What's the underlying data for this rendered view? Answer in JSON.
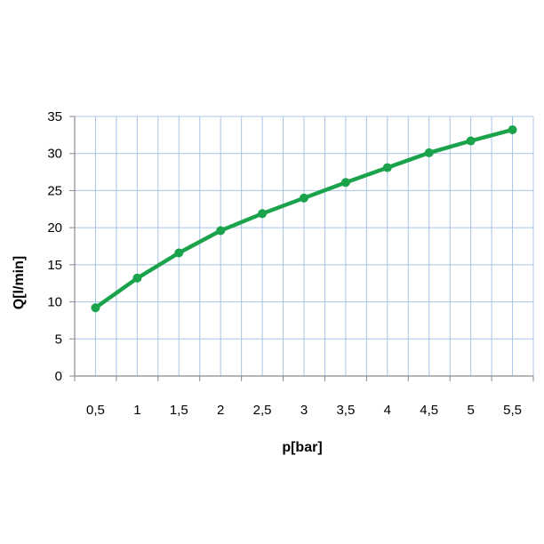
{
  "chart_data": {
    "type": "line",
    "title": "",
    "xlabel": "p[bar]",
    "ylabel": "Q[l/min]",
    "categories": [
      "0,5",
      "1",
      "1,5",
      "2",
      "2,5",
      "3",
      "3,5",
      "4",
      "4,5",
      "5",
      "5,5"
    ],
    "x": [
      0.5,
      1,
      1.5,
      2,
      2.5,
      3,
      3.5,
      4,
      4.5,
      5,
      5.5
    ],
    "series": [
      {
        "name": "",
        "values": [
          9.2,
          13.2,
          16.6,
          19.6,
          21.9,
          24.0,
          26.1,
          28.1,
          30.1,
          31.7,
          33.2
        ]
      }
    ],
    "ylim": [
      0,
      35
    ],
    "yticks": [
      0,
      5,
      10,
      15,
      20,
      25,
      30,
      35
    ],
    "grid": true,
    "colors": {
      "line": "#1aa34a",
      "grid": "#a9c4e6",
      "axis": "#8a8a8a"
    }
  }
}
